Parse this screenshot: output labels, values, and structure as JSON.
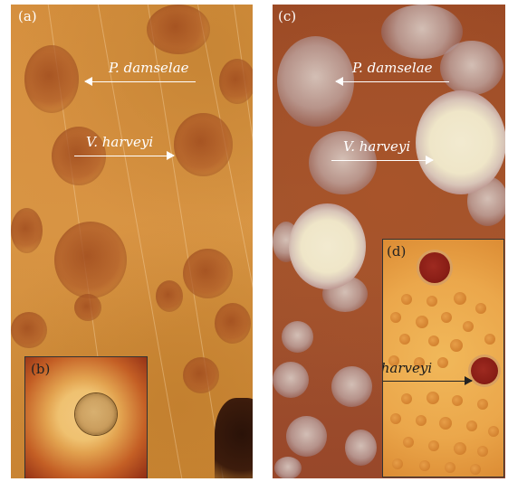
{
  "panels": {
    "a": {
      "letter": "(a)"
    },
    "b": {
      "letter": "(b)"
    },
    "c": {
      "letter": "(c)"
    },
    "d": {
      "letter": "(d)"
    }
  },
  "labels": {
    "p_damselae_a": "P. damselae",
    "v_harveyi_a": "V. harveyi",
    "p_damselae_c": "P. damselae",
    "v_harveyi_c": "V. harveyi",
    "v_harveyi_d": "V. harveyi"
  }
}
